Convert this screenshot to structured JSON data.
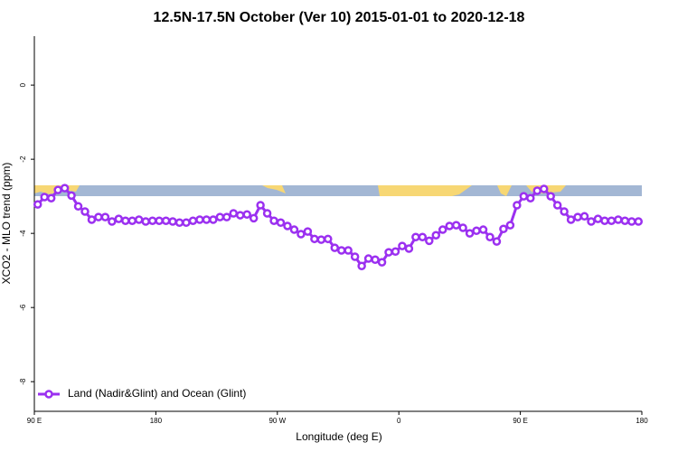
{
  "chart_data": {
    "type": "line",
    "title": "12.5N-17.5N October (Ver 10)   2015-01-01 to 2020-12-18",
    "x_label": "Longitude (deg E)",
    "y_label": "XCO2 - MLO trend (ppm)",
    "xlim": [
      90,
      540
    ],
    "ylim": [
      -8.8,
      1.32
    ],
    "xticks": [
      {
        "value": 90,
        "label": "90 E"
      },
      180,
      {
        "value": 270,
        "label": "90 W"
      },
      {
        "value": 360,
        "label": "0"
      },
      {
        "value": 450,
        "label": "90 E"
      },
      {
        "value": 540,
        "label": "180"
      }
    ],
    "yticks": [
      0,
      -2,
      -4,
      -6,
      -8
    ],
    "legend": "bottom-left",
    "x": [
      92.5,
      97.5,
      102.5,
      107.5,
      112.5,
      117.5,
      122.5,
      127.5,
      132.5,
      137.5,
      142.5,
      147.5,
      152.5,
      157.5,
      162.5,
      167.5,
      172.5,
      177.5,
      182.5,
      187.5,
      192.5,
      197.5,
      202.5,
      207.5,
      212.5,
      217.5,
      222.5,
      227.5,
      232.5,
      237.5,
      242.5,
      247.5,
      252.5,
      257.5,
      262.5,
      267.5,
      272.5,
      277.5,
      282.5,
      287.5,
      292.5,
      297.5,
      302.5,
      307.5,
      312.5,
      317.5,
      322.5,
      327.5,
      332.5,
      337.5,
      342.5,
      347.5,
      352.5,
      357.5,
      362.5,
      367.5,
      372.5,
      377.5,
      382.5,
      387.5,
      392.5,
      397.5,
      402.5,
      407.5,
      412.5,
      417.5,
      422.5,
      427.5,
      432.5,
      437.5,
      442.5,
      447.5,
      452.5,
      457.5,
      462.5,
      467.5,
      472.5,
      477.5,
      482.5,
      487.5,
      492.5,
      497.5,
      502.5,
      507.5,
      512.5,
      517.5,
      522.5,
      527.5,
      532.5,
      537.5
    ],
    "series": [
      {
        "name": "Land (Nadir&Glint) and Ocean (Glint)",
        "color": "#9b30f0",
        "values": [
          -3.22,
          -3.02,
          -3.05,
          -2.83,
          -2.78,
          -2.98,
          -3.27,
          -3.41,
          -3.63,
          -3.56,
          -3.56,
          -3.68,
          -3.61,
          -3.66,
          -3.66,
          -3.63,
          -3.68,
          -3.66,
          -3.66,
          -3.66,
          -3.68,
          -3.71,
          -3.71,
          -3.66,
          -3.63,
          -3.63,
          -3.63,
          -3.56,
          -3.56,
          -3.46,
          -3.51,
          -3.49,
          -3.59,
          -3.24,
          -3.46,
          -3.66,
          -3.71,
          -3.8,
          -3.9,
          -4.02,
          -3.95,
          -4.15,
          -4.17,
          -4.15,
          -4.39,
          -4.46,
          -4.46,
          -4.63,
          -4.88,
          -4.68,
          -4.71,
          -4.78,
          -4.51,
          -4.49,
          -4.34,
          -4.41,
          -4.1,
          -4.1,
          -4.2,
          -4.05,
          -3.9,
          -3.8,
          -3.78,
          -3.85,
          -4.0,
          -3.93,
          -3.9,
          -4.1,
          -4.22,
          -3.88,
          -3.78,
          -3.24,
          -3.0,
          -3.05,
          -2.85,
          -2.8,
          -3.0,
          -3.24,
          -3.41,
          -3.63,
          -3.56,
          -3.54,
          -3.68,
          -3.61,
          -3.66,
          -3.66,
          -3.63,
          -3.66,
          -3.68,
          -3.68
        ]
      }
    ]
  }
}
